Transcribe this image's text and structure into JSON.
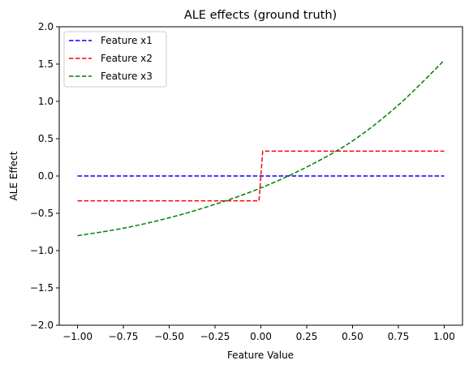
{
  "chart_data": {
    "type": "line",
    "title": "ALE effects (ground truth)",
    "xlabel": "Feature Value",
    "ylabel": "ALE Effect",
    "xlim": [
      -1.1,
      1.1
    ],
    "ylim": [
      -2.0,
      2.0
    ],
    "xticks": [
      -1.0,
      -0.75,
      -0.5,
      -0.25,
      0.0,
      0.25,
      0.5,
      0.75,
      1.0
    ],
    "xtick_labels": [
      "−1.00",
      "−0.75",
      "−0.50",
      "−0.25",
      "0.00",
      "0.25",
      "0.50",
      "0.75",
      "1.00"
    ],
    "yticks": [
      -2.0,
      -1.5,
      -1.0,
      -0.5,
      0.0,
      0.5,
      1.0,
      1.5,
      2.0
    ],
    "ytick_labels": [
      "−2.0",
      "−1.5",
      "−1.0",
      "−0.5",
      "0.0",
      "0.5",
      "1.0",
      "1.5",
      "2.0"
    ],
    "grid": false,
    "legend_position": "top-left",
    "series": [
      {
        "name": "Feature x1",
        "color": "#0000ff",
        "style": "dashed",
        "x": [
          -1.0,
          1.0
        ],
        "y": [
          0.0,
          0.0
        ]
      },
      {
        "name": "Feature x2",
        "color": "#ff0000",
        "style": "dashed",
        "x": [
          -1.0,
          -0.01,
          0.01,
          1.0
        ],
        "y": [
          -0.333,
          -0.333,
          0.333,
          0.333
        ]
      },
      {
        "name": "Feature x3",
        "color": "#008000",
        "style": "dashed",
        "x": [
          -1.0,
          -0.75,
          -0.5,
          -0.25,
          0.0,
          0.25,
          0.5,
          0.75,
          1.0
        ],
        "y": [
          -0.8,
          -0.7,
          -0.56,
          -0.38,
          -0.16,
          0.12,
          0.47,
          0.95,
          1.55
        ]
      }
    ]
  }
}
